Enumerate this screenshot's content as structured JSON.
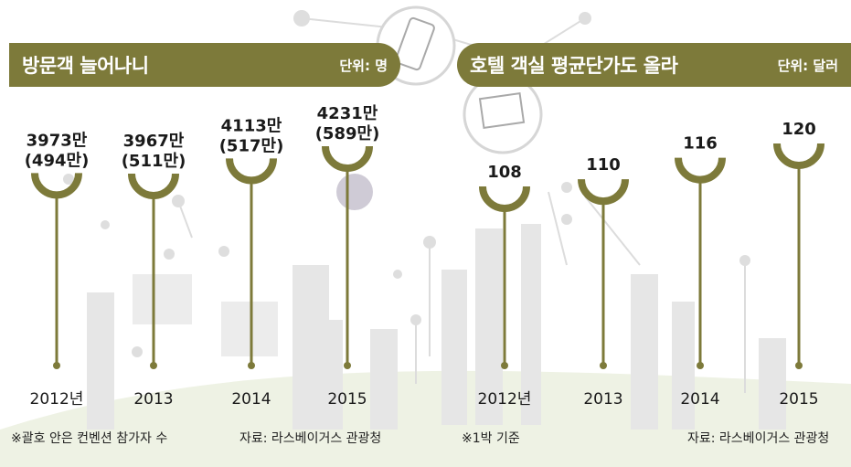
{
  "colors": {
    "accent": "#7d7a3a",
    "text": "#1a1a1a"
  },
  "left_panel": {
    "title": "방문객 늘어나니",
    "unit": "단위: 명",
    "note": "※괄호 안은 컨벤션 참가자 수",
    "source": "자료: 라스베이거스 관광청"
  },
  "right_panel": {
    "title": "호텔 객실 평균단가도 올라",
    "unit": "단위: 달러",
    "note": "※1박 기준",
    "source": "자료: 라스베이거스 관광청"
  },
  "chart_data": [
    {
      "type": "bar",
      "title": "방문객 늘어나니",
      "unit": "단위: 명",
      "categories": [
        "2012년",
        "2013",
        "2014",
        "2015"
      ],
      "series": [
        {
          "values": [
            39730000,
            39670000,
            41130000,
            42310000
          ]
        },
        {
          "values": [
            4940000,
            5110000,
            5170000,
            5890000
          ]
        }
      ],
      "value_labels": [
        "3973만",
        "3967만",
        "4113만",
        "4231만"
      ],
      "secondary_labels": [
        "(494만)",
        "(511만)",
        "(517만)",
        "(589만)"
      ]
    },
    {
      "type": "bar",
      "title": "호텔 객실 평균단가도 올라",
      "unit": "단위: 달러",
      "categories": [
        "2012년",
        "2013",
        "2014",
        "2015"
      ],
      "values": [
        108,
        110,
        116,
        120
      ],
      "value_labels": [
        "108",
        "110",
        "116",
        "120"
      ]
    }
  ]
}
